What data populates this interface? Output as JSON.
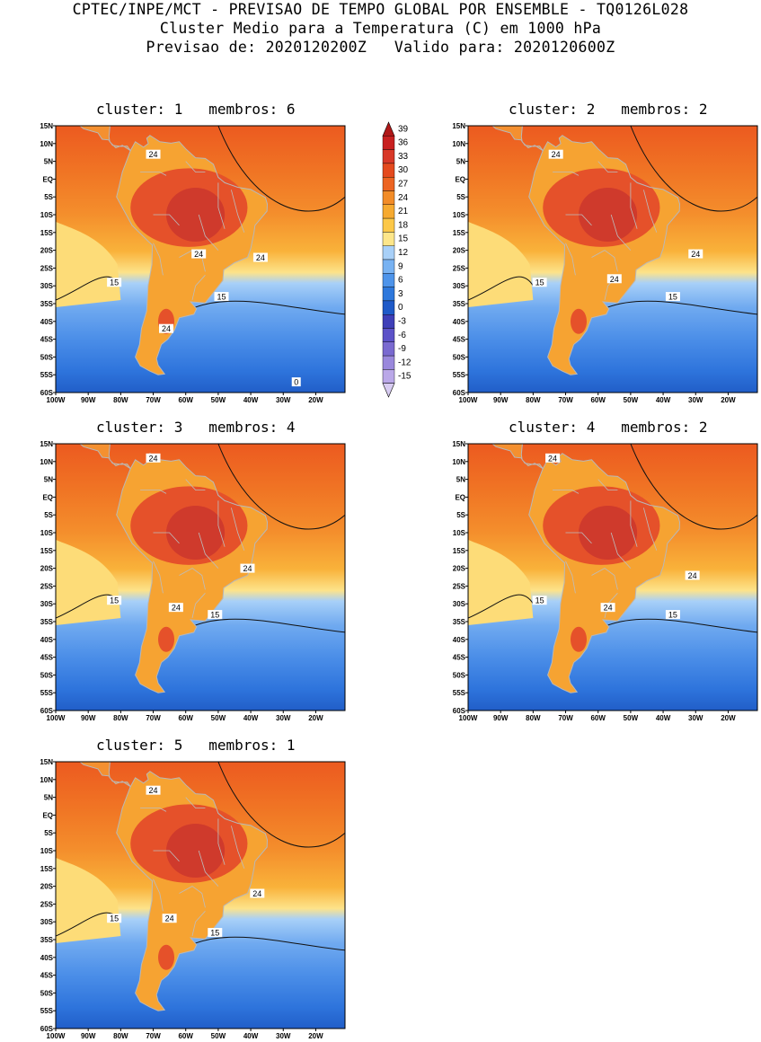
{
  "header": {
    "line1": "CPTEC/INPE/MCT - PREVISAO DE TEMPO GLOBAL POR ENSEMBLE - TQ0126L028",
    "line2": "Cluster Medio para a Temperatura (C) em 1000 hPa",
    "line3": "Previsao de: 2020120200Z   Valido para: 2020120600Z"
  },
  "axes": {
    "lat_labels": [
      "15N",
      "10N",
      "5N",
      "EQ",
      "5S",
      "10S",
      "15S",
      "20S",
      "25S",
      "30S",
      "35S",
      "40S",
      "45S",
      "50S",
      "55S",
      "60S"
    ],
    "lon_labels": [
      "100W",
      "90W",
      "80W",
      "70W",
      "60W",
      "50W",
      "40W",
      "30W",
      "20W"
    ]
  },
  "colorbar": {
    "labels": [
      "39",
      "36",
      "33",
      "30",
      "27",
      "24",
      "21",
      "18",
      "15",
      "12",
      "9",
      "6",
      "3",
      "0",
      "-3",
      "-6",
      "-9",
      "-12",
      "-15"
    ],
    "colors": [
      "#b01818",
      "#c82020",
      "#d83828",
      "#e44a1e",
      "#ec6422",
      "#f28c28",
      "#f6aa30",
      "#fcc848",
      "#fde68a",
      "#a8d0f8",
      "#78b2f2",
      "#4e94ea",
      "#2e78dc",
      "#1f5ac8",
      "#3f3fb8",
      "#5c52c8",
      "#7a6ad0",
      "#9a88dc",
      "#baa8e8",
      "#d8ccf2"
    ]
  },
  "panels": [
    {
      "title": "cluster: 1   membros: 6",
      "labels": [
        {
          "t": "24",
          "lon": -70,
          "lat": 7
        },
        {
          "t": "24",
          "lon": -56,
          "lat": -21
        },
        {
          "t": "24",
          "lon": -37,
          "lat": -22
        },
        {
          "t": "15",
          "lon": -82,
          "lat": -29
        },
        {
          "t": "15",
          "lon": -49,
          "lat": -33
        },
        {
          "t": "24",
          "lon": -66,
          "lat": -42
        },
        {
          "t": "0",
          "lon": -26,
          "lat": -57
        }
      ]
    },
    {
      "title": "cluster: 2   membros: 2",
      "labels": [
        {
          "t": "24",
          "lon": -73,
          "lat": 7
        },
        {
          "t": "24",
          "lon": -55,
          "lat": -28
        },
        {
          "t": "24",
          "lon": -30,
          "lat": -21
        },
        {
          "t": "15",
          "lon": -78,
          "lat": -29
        },
        {
          "t": "15",
          "lon": -37,
          "lat": -33
        }
      ]
    },
    {
      "title": "cluster: 3   membros: 4",
      "labels": [
        {
          "t": "24",
          "lon": -70,
          "lat": 11
        },
        {
          "t": "24",
          "lon": -41,
          "lat": -20
        },
        {
          "t": "24",
          "lon": -63,
          "lat": -31
        },
        {
          "t": "15",
          "lon": -82,
          "lat": -29
        },
        {
          "t": "15",
          "lon": -51,
          "lat": -33
        }
      ]
    },
    {
      "title": "cluster: 4   membros: 2",
      "labels": [
        {
          "t": "24",
          "lon": -74,
          "lat": 11
        },
        {
          "t": "24",
          "lon": -57,
          "lat": -31
        },
        {
          "t": "24",
          "lon": -31,
          "lat": -22
        },
        {
          "t": "15",
          "lon": -78,
          "lat": -29
        },
        {
          "t": "15",
          "lon": -37,
          "lat": -33
        }
      ]
    },
    {
      "title": "cluster: 5   membros: 1",
      "labels": [
        {
          "t": "24",
          "lon": -70,
          "lat": 7
        },
        {
          "t": "24",
          "lon": -38,
          "lat": -22
        },
        {
          "t": "24",
          "lon": -65,
          "lat": -29
        },
        {
          "t": "15",
          "lon": -82,
          "lat": -29
        },
        {
          "t": "15",
          "lon": -51,
          "lat": -33
        }
      ]
    }
  ]
}
